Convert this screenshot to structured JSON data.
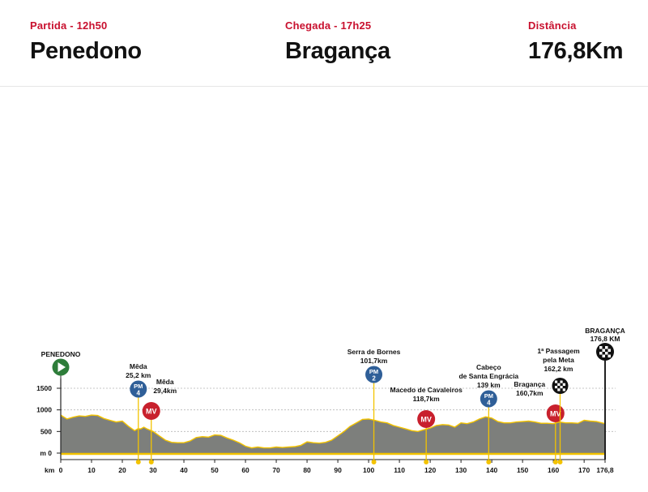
{
  "header": {
    "start": {
      "label": "Partida - 12h50",
      "value": "Penedono"
    },
    "finish": {
      "label": "Chegada - 17h25",
      "value": "Bragança"
    },
    "distance": {
      "label": "Distância",
      "value": "176,8Km"
    }
  },
  "chart_data": {
    "type": "area",
    "xlabel": "km",
    "ylabel": "m",
    "xlim": [
      0,
      176.8
    ],
    "ylim": [
      0,
      1500
    ],
    "x_ticks": [
      0,
      10,
      20,
      30,
      40,
      50,
      60,
      70,
      80,
      90,
      100,
      110,
      120,
      130,
      140,
      150,
      160,
      170,
      176.8
    ],
    "x_tick_labels": [
      "0",
      "10",
      "20",
      "30",
      "40",
      "50",
      "60",
      "70",
      "80",
      "90",
      "100",
      "110",
      "120",
      "130",
      "140",
      "150",
      "160",
      "170",
      "176,8"
    ],
    "y_ticks": [
      0,
      500,
      1000,
      1500
    ],
    "y_tick_labels": [
      "0",
      "500",
      "1000",
      "1500"
    ],
    "grid": "horizontal dotted",
    "colors": {
      "fill": "#7d7f7c",
      "line": "#f3c300",
      "pm": "#2f5f98",
      "mv": "#c8202d",
      "start": "#2e7d3a"
    },
    "elevation": {
      "x": [
        0,
        2,
        4,
        6,
        8,
        10,
        12,
        14,
        16,
        18,
        20,
        22,
        24,
        25,
        26,
        27,
        28,
        30,
        32,
        34,
        36,
        38,
        40,
        42,
        44,
        46,
        48,
        50,
        52,
        54,
        56,
        58,
        60,
        62,
        64,
        66,
        68,
        70,
        72,
        74,
        76,
        78,
        80,
        82,
        84,
        86,
        88,
        90,
        92,
        94,
        96,
        98,
        100,
        102,
        104,
        106,
        108,
        110,
        112,
        114,
        116,
        118,
        120,
        122,
        124,
        126,
        128,
        130,
        132,
        134,
        136,
        138,
        140,
        142,
        144,
        146,
        148,
        150,
        152,
        154,
        156,
        158,
        160,
        162,
        164,
        166,
        168,
        170,
        172,
        174,
        176.8
      ],
      "y": [
        880,
        790,
        830,
        860,
        850,
        880,
        870,
        800,
        760,
        720,
        740,
        620,
        520,
        560,
        560,
        600,
        560,
        500,
        400,
        300,
        250,
        240,
        240,
        280,
        360,
        380,
        370,
        420,
        410,
        350,
        300,
        240,
        160,
        120,
        140,
        120,
        120,
        140,
        130,
        140,
        150,
        180,
        260,
        240,
        230,
        250,
        300,
        400,
        500,
        620,
        700,
        780,
        790,
        760,
        720,
        700,
        640,
        600,
        560,
        520,
        500,
        540,
        580,
        640,
        660,
        650,
        600,
        700,
        680,
        720,
        790,
        840,
        810,
        730,
        700,
        700,
        720,
        730,
        740,
        720,
        690,
        690,
        680,
        720,
        700,
        700,
        690,
        760,
        740,
        730,
        680
      ]
    },
    "annotations": [
      {
        "type": "start",
        "km": 0,
        "lines": [
          "PENEDONO"
        ]
      },
      {
        "type": "PM",
        "category": "4",
        "km": 25.2,
        "lines": [
          "Mêda",
          "25,2 km"
        ]
      },
      {
        "type": "MV",
        "km": 29.4,
        "lines": [
          "Mêda",
          "29,4km"
        ]
      },
      {
        "type": "PM",
        "category": "2",
        "km": 101.7,
        "lines": [
          "Serra de Bornes",
          "101,7km"
        ]
      },
      {
        "type": "MV",
        "km": 118.7,
        "lines": [
          "Macedo de Cavaleiros",
          "118,7km"
        ]
      },
      {
        "type": "PM",
        "category": "4",
        "km": 139,
        "lines": [
          "Cabeço",
          "de Santa Engrácia",
          "139 km"
        ]
      },
      {
        "type": "MV",
        "km": 160.7,
        "lines": [
          "Bragança",
          "160,7km"
        ]
      },
      {
        "type": "passage",
        "km": 162.2,
        "lines": [
          "1ª Passagem",
          "pela Meta",
          "162,2 km"
        ]
      },
      {
        "type": "finish",
        "km": 176.8,
        "lines": [
          "BRAGANÇA",
          "176,8 KM"
        ]
      }
    ]
  }
}
